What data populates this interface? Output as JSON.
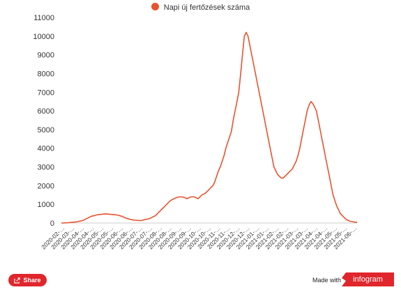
{
  "colors": {
    "series": "#e8532f",
    "share": "#e0262c",
    "brand": "#e0262c",
    "axis_text": "#333333",
    "axis_line": "#999999"
  },
  "footer": {
    "share_label": "Share",
    "share_icon": "share-icon",
    "made_with": "Made with",
    "brand": "infogram"
  },
  "chart_data": {
    "type": "line",
    "title": "",
    "xlabel": "",
    "ylabel": "",
    "ylim": [
      0,
      11000
    ],
    "yticks": [
      0,
      1000,
      2000,
      3000,
      4000,
      5000,
      6000,
      7000,
      8000,
      9000,
      10000,
      11000
    ],
    "legend_position": "top-center",
    "grid": false,
    "x_tick_labels": [
      "2020-02-…",
      "2020-03-…",
      "2020-04-…",
      "2020-04-…",
      "2020-05-…",
      "2020-05-…",
      "2020-06-…",
      "2020-06-…",
      "2020-07-…",
      "2020-07-…",
      "2020-08-…",
      "2020-08-…",
      "2020-09-…",
      "2020-09-…",
      "2020-10-…",
      "2020-10-…",
      "2020-11-…",
      "2020-11-…",
      "2020-12-…",
      "2020-12-…",
      "2021-01-…",
      "2021-01-…",
      "2021-02-…",
      "2021-02-…",
      "2021-03-…",
      "2021-03-…",
      "2021-04-…",
      "2021-04-…",
      "2021-05-…",
      "2021-05-…",
      "2021-06-…"
    ],
    "start_date": "2020-03-01",
    "series": [
      {
        "name": "Napi új fertőzések száma",
        "values": [
          0,
          0,
          10,
          10,
          20,
          30,
          40,
          50,
          60,
          80,
          100,
          120,
          150,
          200,
          250,
          300,
          350,
          380,
          400,
          430,
          450,
          460,
          470,
          480,
          490,
          480,
          470,
          460,
          450,
          440,
          430,
          410,
          380,
          350,
          300,
          260,
          230,
          200,
          180,
          160,
          150,
          140,
          130,
          130,
          150,
          180,
          200,
          220,
          250,
          300,
          350,
          400,
          500,
          600,
          700,
          800,
          900,
          1000,
          1100,
          1200,
          1250,
          1300,
          1350,
          1380,
          1400,
          1400,
          1380,
          1350,
          1300,
          1350,
          1400,
          1400,
          1400,
          1350,
          1300,
          1400,
          1500,
          1550,
          1600,
          1700,
          1800,
          1900,
          2000,
          2200,
          2500,
          2800,
          3000,
          3300,
          3600,
          4000,
          4300,
          4600,
          4900,
          5500,
          6000,
          6500,
          7000,
          8000,
          9000,
          10000,
          10200,
          10000,
          9500,
          9000,
          8500,
          8000,
          7500,
          7000,
          6500,
          6000,
          5500,
          5000,
          4500,
          4000,
          3500,
          3000,
          2800,
          2600,
          2500,
          2400,
          2400,
          2500,
          2600,
          2700,
          2800,
          2900,
          3100,
          3300,
          3600,
          4000,
          4500,
          5000,
          5500,
          6000,
          6300,
          6500,
          6400,
          6200,
          6000,
          5500,
          5000,
          4500,
          4000,
          3500,
          3000,
          2500,
          2000,
          1500,
          1200,
          900,
          700,
          500,
          400,
          300,
          200,
          150,
          100,
          80,
          60,
          50,
          40
        ]
      }
    ]
  }
}
